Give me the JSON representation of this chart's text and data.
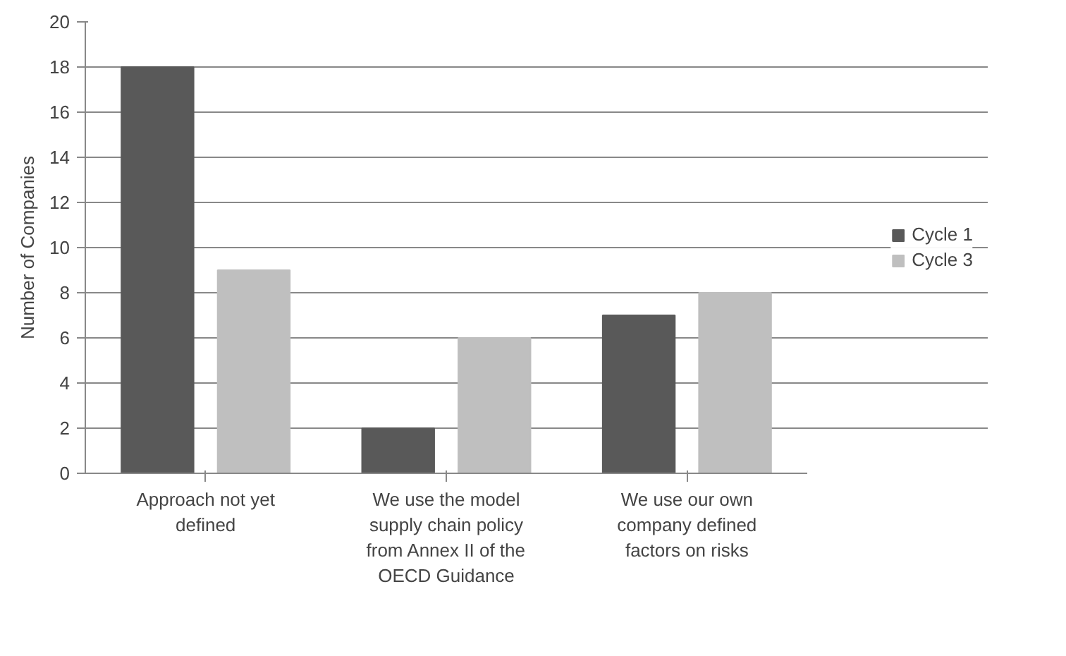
{
  "chart_data": {
    "type": "bar",
    "ylabel": "Number of Companies",
    "categories": [
      "Approach not yet defined",
      "We use the model supply chain policy from Annex II of the OECD Guidance",
      "We use our own company defined factors on risks"
    ],
    "series": [
      {
        "name": "Cycle 1",
        "color": "#595959",
        "values": [
          18,
          2,
          7
        ]
      },
      {
        "name": "Cycle 3",
        "color": "#bfbfbf",
        "values": [
          9,
          6,
          8
        ]
      }
    ],
    "ylim": [
      0,
      20
    ],
    "yticks": [
      0,
      2,
      4,
      6,
      8,
      10,
      12,
      14,
      16,
      18,
      20
    ],
    "grid": "y",
    "legend": "right"
  }
}
